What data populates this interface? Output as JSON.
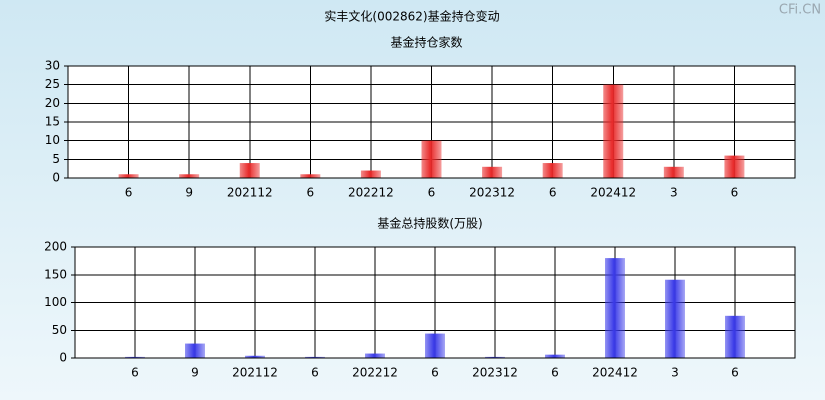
{
  "title": "实丰文化(002862)基金持仓变动",
  "watermark": "CFi.CN",
  "chart_data": [
    {
      "type": "bar",
      "title": "基金持仓家数",
      "categories": [
        "6",
        "9",
        "202112",
        "6",
        "202212",
        "6",
        "202312",
        "6",
        "202412",
        "3",
        "6"
      ],
      "values": [
        1,
        1,
        4,
        1,
        2,
        10,
        3,
        4,
        25,
        3,
        6
      ],
      "color": "#e82a2a",
      "ylim": [
        0,
        30
      ],
      "yticks": [
        0,
        5,
        10,
        15,
        20,
        25,
        30
      ],
      "grid": true
    },
    {
      "type": "bar",
      "title": "基金总持股数(万股)",
      "categories": [
        "6",
        "9",
        "202112",
        "6",
        "202212",
        "6",
        "202312",
        "6",
        "202412",
        "3",
        "6"
      ],
      "values": [
        2,
        26,
        4,
        2,
        8,
        44,
        2,
        6,
        180,
        141,
        76
      ],
      "color": "#3a3ae8",
      "ylim": [
        0,
        200
      ],
      "yticks": [
        0,
        50,
        100,
        150,
        200
      ],
      "grid": true
    }
  ]
}
